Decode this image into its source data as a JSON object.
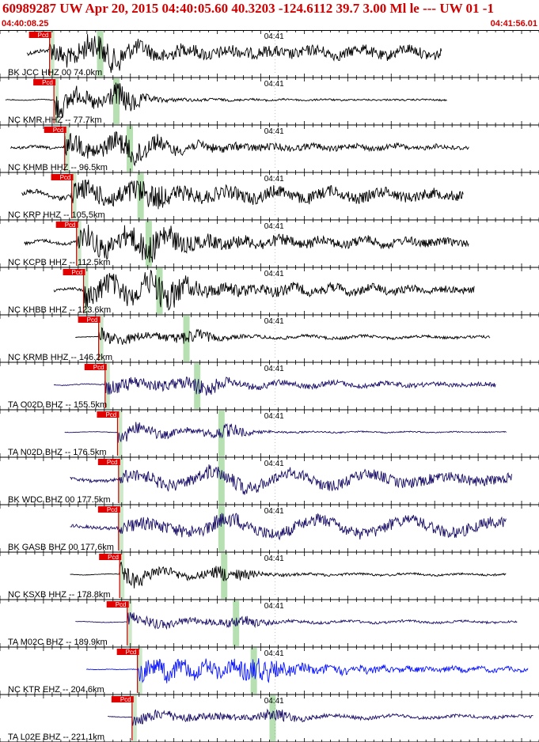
{
  "header": {
    "title": "60989287 UW Apr 20, 2015 04:40:05.60   40.3203 -124.6112 39.7 3.00 Ml le --- UW 01   -1",
    "start_time": "04:40:08.25",
    "end_time": "04:41:56.01",
    "title_color": "#d00000"
  },
  "time_marker_label": "04:41",
  "pick_label": "Pcd",
  "colors": {
    "pick_flag": "#e00000",
    "pick_line": "#d00000",
    "s_window": "#b7e0b2",
    "p_window": "#cde8c8",
    "separator": "#000000",
    "ticks": "#000000"
  },
  "traces": [
    {
      "label": "BK JCC HHZ 00 74.0km",
      "color": "#000000",
      "start": 0.05,
      "end": 0.82,
      "p": 0.092,
      "s": 0.18,
      "amp": 20,
      "pre": 0.35,
      "decay": 0.35,
      "tail": 0.45,
      "noise": 0.9,
      "period": 18
    },
    {
      "label": "NC KMR HHZ -- 77.7km",
      "color": "#000000",
      "start": 0.01,
      "end": 0.83,
      "p": 0.1,
      "s": 0.21,
      "amp": 22,
      "pre": 0.05,
      "decay": 0.18,
      "tail": 0.06,
      "noise": 1.0,
      "period": 14
    },
    {
      "label": "NC KHMB HHZ -- 96.5km",
      "color": "#000000",
      "start": 0.02,
      "end": 0.87,
      "p": 0.12,
      "s": 0.235,
      "amp": 19,
      "pre": 0.25,
      "decay": 0.45,
      "tail": 0.18,
      "noise": 0.9,
      "period": 16
    },
    {
      "label": "NC KRP HHZ -- 105.5km",
      "color": "#000000",
      "start": 0.04,
      "end": 0.86,
      "p": 0.133,
      "s": 0.255,
      "amp": 20,
      "pre": 0.45,
      "decay": 0.5,
      "tail": 0.45,
      "noise": 0.85,
      "period": 20
    },
    {
      "label": "NC KCPB HHZ -- 112.5km",
      "color": "#000000",
      "start": 0.045,
      "end": 0.87,
      "p": 0.142,
      "s": 0.27,
      "amp": 21,
      "pre": 0.25,
      "decay": 0.55,
      "tail": 0.25,
      "noise": 0.95,
      "period": 16
    },
    {
      "label": "NC KHBB HHZ -- 123.6km",
      "color": "#000000",
      "start": 0.1,
      "end": 0.88,
      "p": 0.155,
      "s": 0.29,
      "amp": 22,
      "pre": 0.2,
      "decay": 0.5,
      "tail": 0.22,
      "noise": 0.95,
      "period": 15
    },
    {
      "label": "NC KRMB HHZ -- 146.2km",
      "color": "#000000",
      "start": 0.14,
      "end": 0.91,
      "p": 0.183,
      "s": 0.34,
      "amp": 16,
      "pre": 0.08,
      "decay": 0.25,
      "tail": 0.18,
      "noise": 0.7,
      "period": 22
    },
    {
      "label": "TA O02D BHZ -- 155.5km",
      "color": "#1a0f66",
      "start": 0.1,
      "end": 0.92,
      "p": 0.195,
      "s": 0.36,
      "amp": 17,
      "pre": 0.12,
      "decay": 0.35,
      "tail": 0.25,
      "noise": 0.75,
      "period": 20
    },
    {
      "label": "TA N02D BHZ -- 176.5km",
      "color": "#1a0f66",
      "start": 0.12,
      "end": 0.94,
      "p": 0.218,
      "s": 0.405,
      "amp": 18,
      "pre": 0.05,
      "decay": 0.22,
      "tail": 0.06,
      "noise": 0.75,
      "period": 18
    },
    {
      "label": "BK WDC BHZ 00 177.5km",
      "color": "#1a0f66",
      "start": 0.13,
      "end": 0.95,
      "p": 0.22,
      "s": 0.405,
      "amp": 21,
      "pre": 0.45,
      "decay": 0.6,
      "tail": 0.75,
      "noise": 0.5,
      "period": 30
    },
    {
      "label": "BK GASB BHZ 00 177.6km",
      "color": "#1a0f66",
      "start": 0.13,
      "end": 0.94,
      "p": 0.22,
      "s": 0.405,
      "amp": 21,
      "pre": 0.5,
      "decay": 0.6,
      "tail": 0.85,
      "noise": 0.5,
      "period": 34
    },
    {
      "label": "NC KSXB HHZ -- 178.8km",
      "color": "#000000",
      "start": 0.13,
      "end": 0.94,
      "p": 0.222,
      "s": 0.41,
      "amp": 20,
      "pre": 0.06,
      "decay": 0.22,
      "tail": 0.1,
      "noise": 0.8,
      "period": 20
    },
    {
      "label": "TA M02C BHZ -- 189.9km",
      "color": "#1a0f66",
      "start": 0.14,
      "end": 0.96,
      "p": 0.236,
      "s": 0.432,
      "amp": 15,
      "pre": 0.08,
      "decay": 0.28,
      "tail": 0.15,
      "noise": 0.7,
      "period": 22
    },
    {
      "label": "NC KTR EHZ -- 204.6km",
      "color": "#0a14ff",
      "start": 0.16,
      "end": 0.98,
      "p": 0.255,
      "s": 0.465,
      "amp": 17,
      "pre": 0.05,
      "decay": 0.6,
      "tail": 0.1,
      "noise": 1.0,
      "period": 10
    },
    {
      "label": "TA L02E BHZ -- 221.1km",
      "color": "#1a0f66",
      "start": 0.2,
      "end": 0.99,
      "p": 0.245,
      "s": 0.5,
      "amp": 15,
      "pre": 0.1,
      "decay": 0.3,
      "tail": 0.22,
      "noise": 0.7,
      "period": 24
    }
  ]
}
